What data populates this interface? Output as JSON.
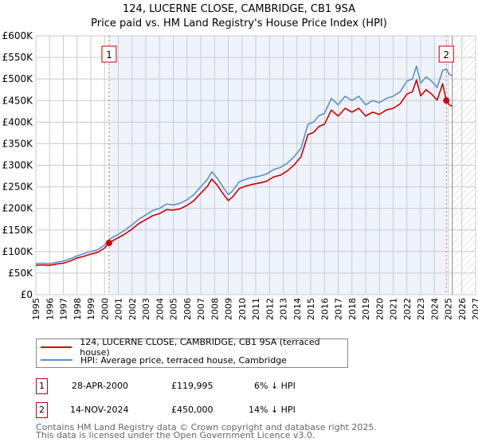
{
  "chart_data": {
    "type": "line",
    "title": "124, LUCERNE CLOSE, CAMBRIDGE, CB1 9SA",
    "subtitle": "Price paid vs. HM Land Registry's House Price Index (HPI)",
    "xlim": [
      1995,
      2027
    ],
    "ylim": [
      0,
      600000
    ],
    "x_ticks": [
      "1995",
      "1996",
      "1997",
      "1998",
      "1999",
      "2000",
      "2001",
      "2002",
      "2003",
      "2004",
      "2005",
      "2006",
      "2007",
      "2008",
      "2009",
      "2010",
      "2011",
      "2012",
      "2013",
      "2014",
      "2015",
      "2016",
      "2017",
      "2018",
      "2019",
      "2020",
      "2021",
      "2022",
      "2023",
      "2024",
      "2025",
      "2026",
      "2027"
    ],
    "y_ticks": [
      "£0",
      "£50K",
      "£100K",
      "£150K",
      "£200K",
      "£250K",
      "£300K",
      "£350K",
      "£400K",
      "£450K",
      "£500K",
      "£550K",
      "£600K"
    ],
    "grid": true,
    "forecast_hatch_from": 2025.3,
    "series": [
      {
        "name": "124, LUCERNE CLOSE, CAMBRIDGE, CB1 9SA (terraced house)",
        "color": "#cc0000",
        "x": [
          1995,
          1995.5,
          1996,
          1996.5,
          1997,
          1997.5,
          1998,
          1998.5,
          1999,
          1999.5,
          2000,
          2000.33,
          2000.7,
          2001,
          2001.5,
          2002,
          2002.5,
          2003,
          2003.5,
          2004,
          2004.5,
          2005,
          2005.5,
          2006,
          2006.5,
          2007,
          2007.5,
          2007.8,
          2008.2,
          2008.6,
          2009,
          2009.3,
          2009.8,
          2010.3,
          2010.8,
          2011.3,
          2011.8,
          2012.3,
          2012.8,
          2013.3,
          2013.8,
          2014.3,
          2014.8,
          2015.2,
          2015.6,
          2016,
          2016.5,
          2017,
          2017.5,
          2018,
          2018.5,
          2019,
          2019.5,
          2020,
          2020.5,
          2021,
          2021.5,
          2022,
          2022.4,
          2022.7,
          2023,
          2023.4,
          2023.8,
          2024.2,
          2024.6,
          2024.87,
          2025.1,
          2025.3
        ],
        "y": [
          68000,
          69000,
          68000,
          71000,
          73000,
          78000,
          85000,
          89000,
          94000,
          98000,
          108000,
          119995,
          127000,
          132000,
          141000,
          152000,
          165000,
          174000,
          183000,
          188000,
          197000,
          196000,
          199000,
          207000,
          218000,
          235000,
          252000,
          268000,
          254000,
          235000,
          218000,
          226000,
          246000,
          252000,
          256000,
          259000,
          263000,
          273000,
          277000,
          287000,
          301000,
          320000,
          371000,
          376000,
          390000,
          395000,
          428000,
          414000,
          432000,
          423000,
          432000,
          414000,
          423000,
          418000,
          428000,
          432000,
          442000,
          465000,
          470000,
          498000,
          461000,
          475000,
          465000,
          451000,
          489000,
          450000,
          440000,
          437000
        ]
      },
      {
        "name": "HPI: Average price, terraced house, Cambridge",
        "color": "#5b8fd0",
        "x": [
          1995,
          1995.5,
          1996,
          1996.5,
          1997,
          1997.5,
          1998,
          1998.5,
          1999,
          1999.5,
          2000,
          2000.33,
          2000.7,
          2001,
          2001.5,
          2002,
          2002.5,
          2003,
          2003.5,
          2004,
          2004.5,
          2005,
          2005.5,
          2006,
          2006.5,
          2007,
          2007.5,
          2007.8,
          2008.2,
          2008.6,
          2009,
          2009.3,
          2009.8,
          2010.3,
          2010.8,
          2011.3,
          2011.8,
          2012.3,
          2012.8,
          2013.3,
          2013.8,
          2014.3,
          2014.8,
          2015.2,
          2015.6,
          2016,
          2016.5,
          2017,
          2017.5,
          2018,
          2018.5,
          2019,
          2019.5,
          2020,
          2020.5,
          2021,
          2021.5,
          2022,
          2022.4,
          2022.7,
          2023,
          2023.4,
          2023.8,
          2024.2,
          2024.6,
          2024.87,
          2025.1,
          2025.3
        ],
        "y": [
          72000,
          73000,
          72000,
          75000,
          78000,
          83000,
          90000,
          95000,
          100000,
          104000,
          115000,
          128000,
          135000,
          140000,
          150000,
          162000,
          175000,
          185000,
          195000,
          200000,
          210000,
          208000,
          212000,
          220000,
          232000,
          250000,
          268000,
          285000,
          270000,
          250000,
          232000,
          240000,
          262000,
          268000,
          272000,
          275000,
          280000,
          290000,
          295000,
          305000,
          320000,
          340000,
          395000,
          400000,
          415000,
          420000,
          455000,
          440000,
          460000,
          450000,
          460000,
          440000,
          450000,
          445000,
          455000,
          460000,
          470000,
          495000,
          500000,
          530000,
          490000,
          505000,
          495000,
          480000,
          520000,
          523000,
          510000,
          508000
        ]
      }
    ],
    "sales": [
      {
        "label": "1",
        "year": 2000.33,
        "price": 119995,
        "date": "28-APR-2000",
        "price_text": "£119,995",
        "delta": "6% ↓ HPI"
      },
      {
        "label": "2",
        "year": 2024.87,
        "price": 450000,
        "date": "14-NOV-2024",
        "price_text": "£450,000",
        "delta": "14% ↓ HPI"
      }
    ]
  },
  "footer": {
    "line1": "Contains HM Land Registry data © Crown copyright and database right 2025.",
    "line2": "This data is licensed under the Open Government Licence v3.0."
  }
}
